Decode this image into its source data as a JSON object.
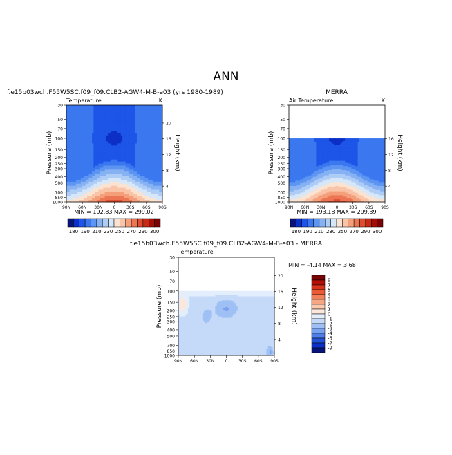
{
  "page": {
    "title": "ANN"
  },
  "chart_data": [
    {
      "type": "heatmap",
      "title": "f.e15b03wch.F55W5SC.f09_f09.CLB2-AGW4-M-B-e03 (yrs 1980-1989)",
      "subtitle_left": "Temperature",
      "subtitle_right": "K",
      "xlabel": "",
      "ylabel": "Pressure (mb)",
      "ylabel_right": "Height (km)",
      "x_ticks": [
        "90N",
        "60N",
        "30N",
        "0",
        "30S",
        "60S",
        "90S"
      ],
      "y_ticks": [
        "30",
        "50",
        "70",
        "100",
        "150",
        "200",
        "250",
        "300",
        "400",
        "500",
        "700",
        "850",
        "1000"
      ],
      "y_right_ticks": [
        "20",
        "16",
        "12",
        "8",
        "4"
      ],
      "ylim": [
        1000,
        30
      ],
      "log_scale_y": true,
      "stats": "MIN = 192.83   MAX = 299.02",
      "colorbar_labels": [
        "180",
        "190",
        "210",
        "230",
        "250",
        "270",
        "290",
        "300"
      ]
    },
    {
      "type": "heatmap",
      "title": "MERRA",
      "subtitle_left": "Air Temperature",
      "subtitle_right": "K",
      "xlabel": "",
      "ylabel": "Pressure (mb)",
      "ylabel_right": "Height (km)",
      "x_ticks": [
        "90N",
        "60N",
        "30N",
        "0",
        "30S",
        "60S",
        "90S"
      ],
      "y_ticks": [
        "30",
        "50",
        "70",
        "100",
        "150",
        "200",
        "250",
        "300",
        "400",
        "500",
        "700",
        "850",
        "1000"
      ],
      "y_right_ticks": [
        "16",
        "12",
        "8",
        "4"
      ],
      "ylim": [
        1000,
        30
      ],
      "log_scale_y": true,
      "data_top_pressure": 100,
      "stats": "MIN = 193.18   MAX = 299.39",
      "colorbar_labels": [
        "180",
        "190",
        "210",
        "230",
        "250",
        "270",
        "290",
        "300"
      ]
    },
    {
      "type": "heatmap",
      "title": "f.e15b03wch.F55W5SC.f09_f09.CLB2-AGW4-M-B-e03 - MERRA",
      "subtitle_left": "Temperature",
      "subtitle_right": "",
      "xlabel": "",
      "ylabel": "Pressure (mb)",
      "ylabel_right": "Height (km)",
      "x_ticks": [
        "90N",
        "60N",
        "30N",
        "0",
        "30S",
        "60S",
        "90S"
      ],
      "y_ticks": [
        "30",
        "50",
        "70",
        "100",
        "150",
        "200",
        "250",
        "300",
        "400",
        "500",
        "700",
        "850",
        "1000"
      ],
      "y_right_ticks": [
        "20",
        "16",
        "12",
        "8",
        "4"
      ],
      "ylim": [
        1000,
        30
      ],
      "log_scale_y": true,
      "data_top_pressure": 100,
      "stats": "MIN = -4.14   MAX =  3.68",
      "colorbar_labels": [
        "9",
        "7",
        "5",
        "4",
        "3",
        "2",
        "1",
        "0",
        "-1",
        "-2",
        "-3",
        "-4",
        "-5",
        "-7",
        "-9"
      ]
    }
  ],
  "palettes": {
    "absolute": [
      "#08147a",
      "#0c2fc6",
      "#1d55e8",
      "#3b78f0",
      "#5d95f2",
      "#86b2f3",
      "#aecdf6",
      "#d6e7fa",
      "#fbe3d2",
      "#f9c4a7",
      "#f49f7a",
      "#ec7654",
      "#dd4d2e",
      "#c72a14",
      "#a20f07",
      "#7a0403"
    ],
    "difference": [
      "#7a0403",
      "#b01007",
      "#d7331a",
      "#ea5a35",
      "#f28159",
      "#f7a683",
      "#fbc9ae",
      "#fde7db",
      "#e3eefc",
      "#c4daf8",
      "#9fc0f4",
      "#7aa3ef",
      "#4f7ee9",
      "#2452d6",
      "#0c2fc6",
      "#08147a"
    ]
  }
}
